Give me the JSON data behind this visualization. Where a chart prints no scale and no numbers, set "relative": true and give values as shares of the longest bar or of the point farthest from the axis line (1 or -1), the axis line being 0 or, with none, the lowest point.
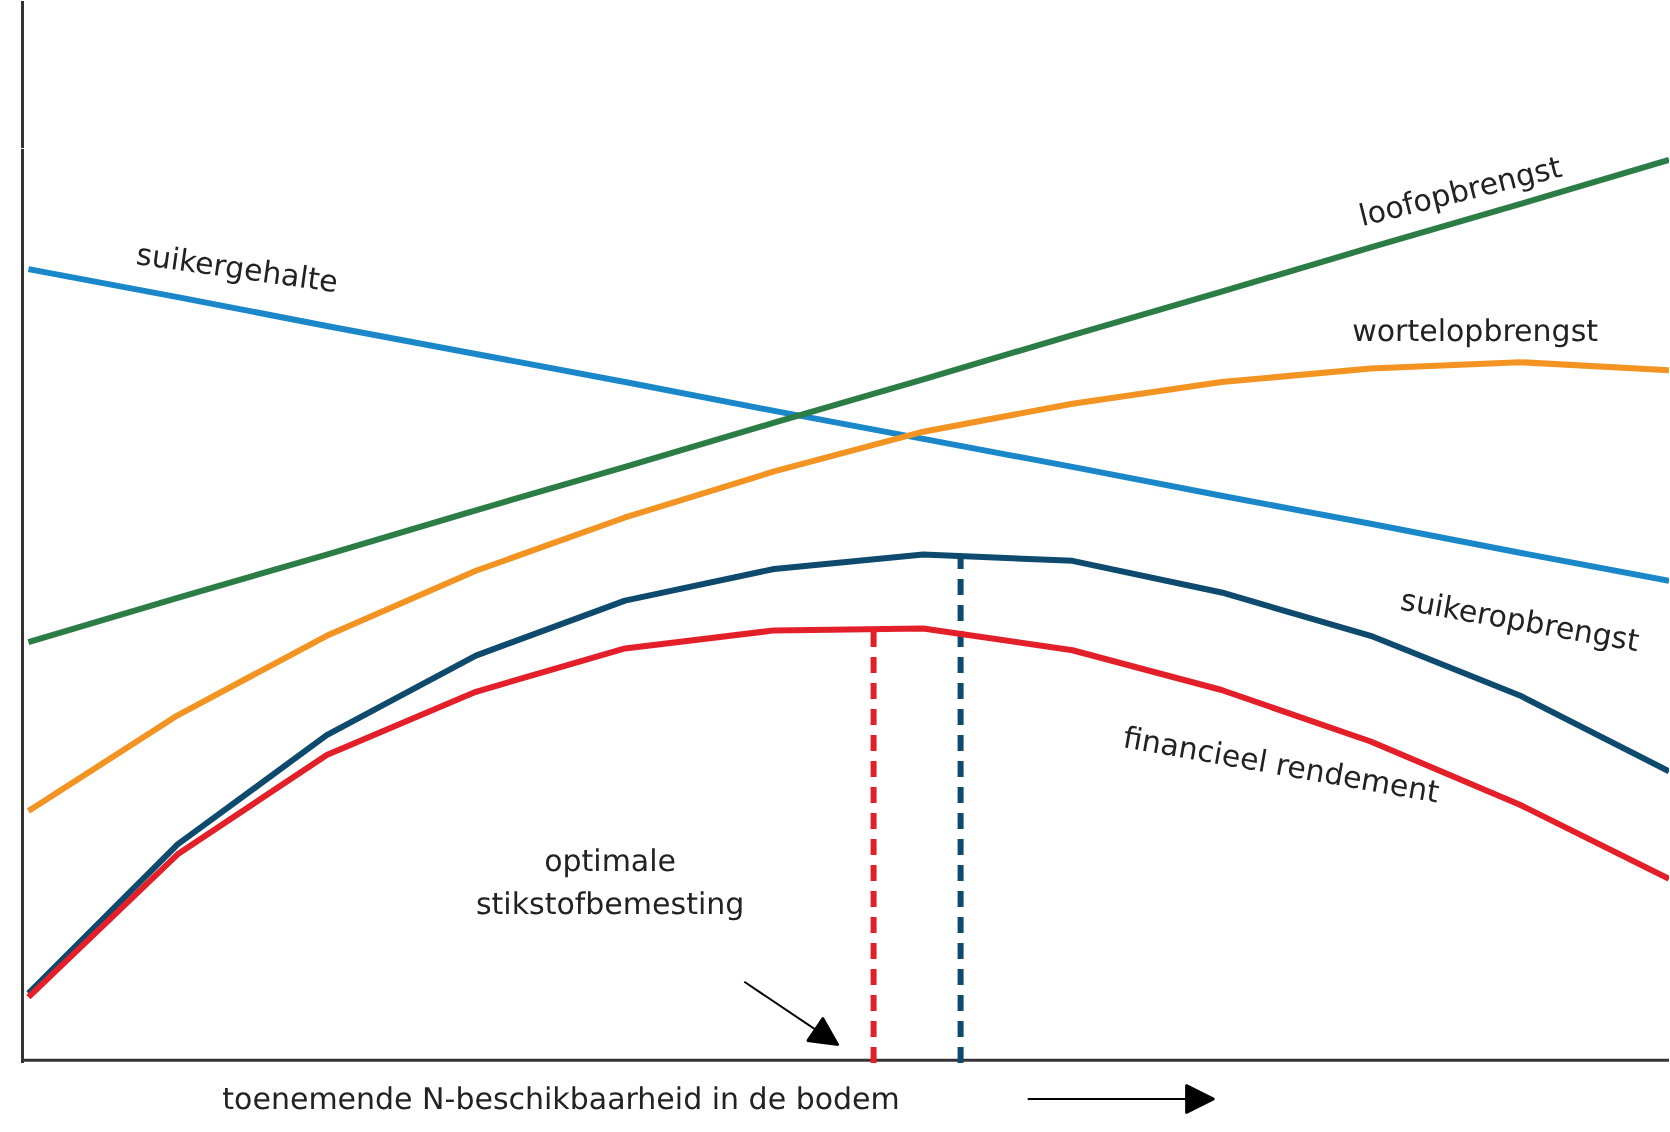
{
  "chart_data": {
    "type": "line",
    "relative": true,
    "line_style": "solid",
    "xlabel": "toenemende N-beschikbaarheid in de bodem",
    "annotations": [
      "optimale\nstikstofbemesting"
    ],
    "categories": [
      null,
      null,
      null,
      null,
      null,
      null,
      null,
      null,
      null,
      null,
      null,
      null
    ],
    "series": [
      {
        "name": "suikergehalte",
        "color": "#1a87c9",
        "values": [
          0.879,
          0.848,
          0.816,
          0.785,
          0.754,
          0.722,
          0.691,
          0.66,
          0.628,
          0.597,
          0.565,
          0.534
        ]
      },
      {
        "name": "loofopbrengst",
        "color": "#2b7d45",
        "values": [
          0.466,
          0.515,
          0.563,
          0.612,
          0.66,
          0.709,
          0.757,
          0.806,
          0.854,
          0.903,
          0.951,
          1
        ]
      },
      {
        "name": "wortelopbrengst",
        "color": "#f39322",
        "values": [
          0.279,
          0.385,
          0.473,
          0.545,
          0.604,
          0.655,
          0.699,
          0.73,
          0.754,
          0.769,
          0.776,
          0.767
        ]
      },
      {
        "name": "suikeropbrengst",
        "color": "#0d4a6e",
        "values": [
          0.077,
          0.242,
          0.363,
          0.451,
          0.512,
          0.547,
          0.563,
          0.556,
          0.521,
          0.473,
          0.407,
          0.323
        ]
      },
      {
        "name": "financieel rendement",
        "color": "#e3202a",
        "values": [
          0.073,
          0.231,
          0.341,
          0.411,
          0.459,
          0.479,
          0.481,
          0.457,
          0.413,
          0.356,
          0.286,
          0.204
        ]
      }
    ]
  }
}
